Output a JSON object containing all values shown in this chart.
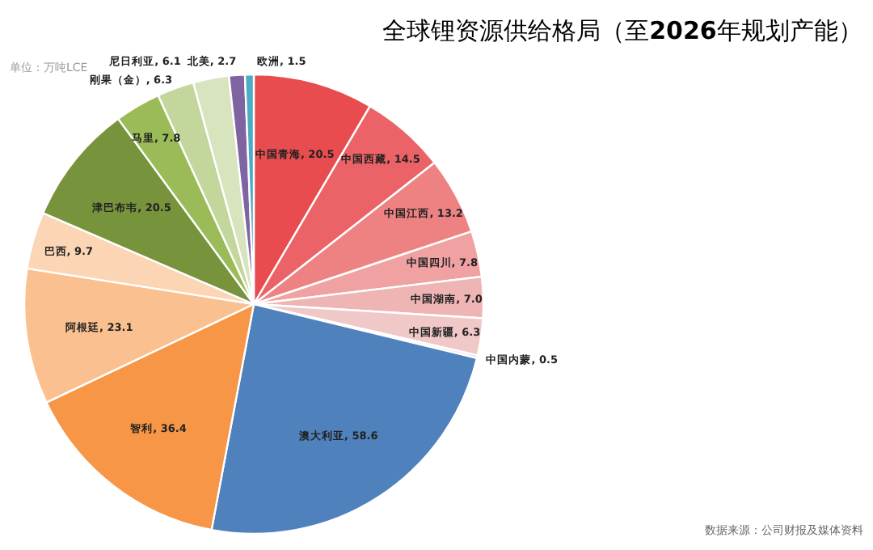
{
  "chart_data": {
    "type": "pie",
    "title": "全球锂资源供给格局（至**2026**年规划产能）",
    "categories": [
      "中国青海",
      "中国西藏",
      "中国江西",
      "中国四川",
      "中国湖南",
      "中国新疆",
      "中国内蒙",
      "澳大利亚",
      "智利",
      "阿根廷",
      "巴西",
      "津巴布韦",
      "马里",
      "刚果（金）",
      "尼日利亚",
      "北美",
      "欧洲"
    ],
    "values": [
      20.5,
      14.5,
      13.2,
      7.8,
      7.0,
      6.3,
      0.5,
      58.6,
      36.4,
      23.1,
      9.7,
      20.5,
      7.8,
      6.3,
      6.1,
      2.7,
      1.5
    ],
    "colors": [
      "#e84c4f",
      "#eb6366",
      "#ee8283",
      "#f0a1a2",
      "#efb4b4",
      "#f0c8c8",
      "#f5dede",
      "#4f81bd",
      "#f79646",
      "#fac090",
      "#fcd5b5",
      "#77933c",
      "#9bbb59",
      "#c3d69b",
      "#d7e4bd",
      "#8064a2",
      "#4bacc6"
    ],
    "value_labels": [
      ", 20.5",
      ", 14.5",
      ", 13.2",
      ", 7.8",
      ", 7.0",
      ", 6.3",
      ", 0.5",
      ", 58.6",
      ", 36.4",
      ", 23.1",
      ", 9.7",
      ", 20.5",
      ", 7.8",
      ", 6.3",
      ", 6.1",
      ", 2.7",
      ", 1.5"
    ],
    "annotations": [
      "单位：万吨LCE",
      "数据来源：公司财报及媒体资料"
    ]
  }
}
